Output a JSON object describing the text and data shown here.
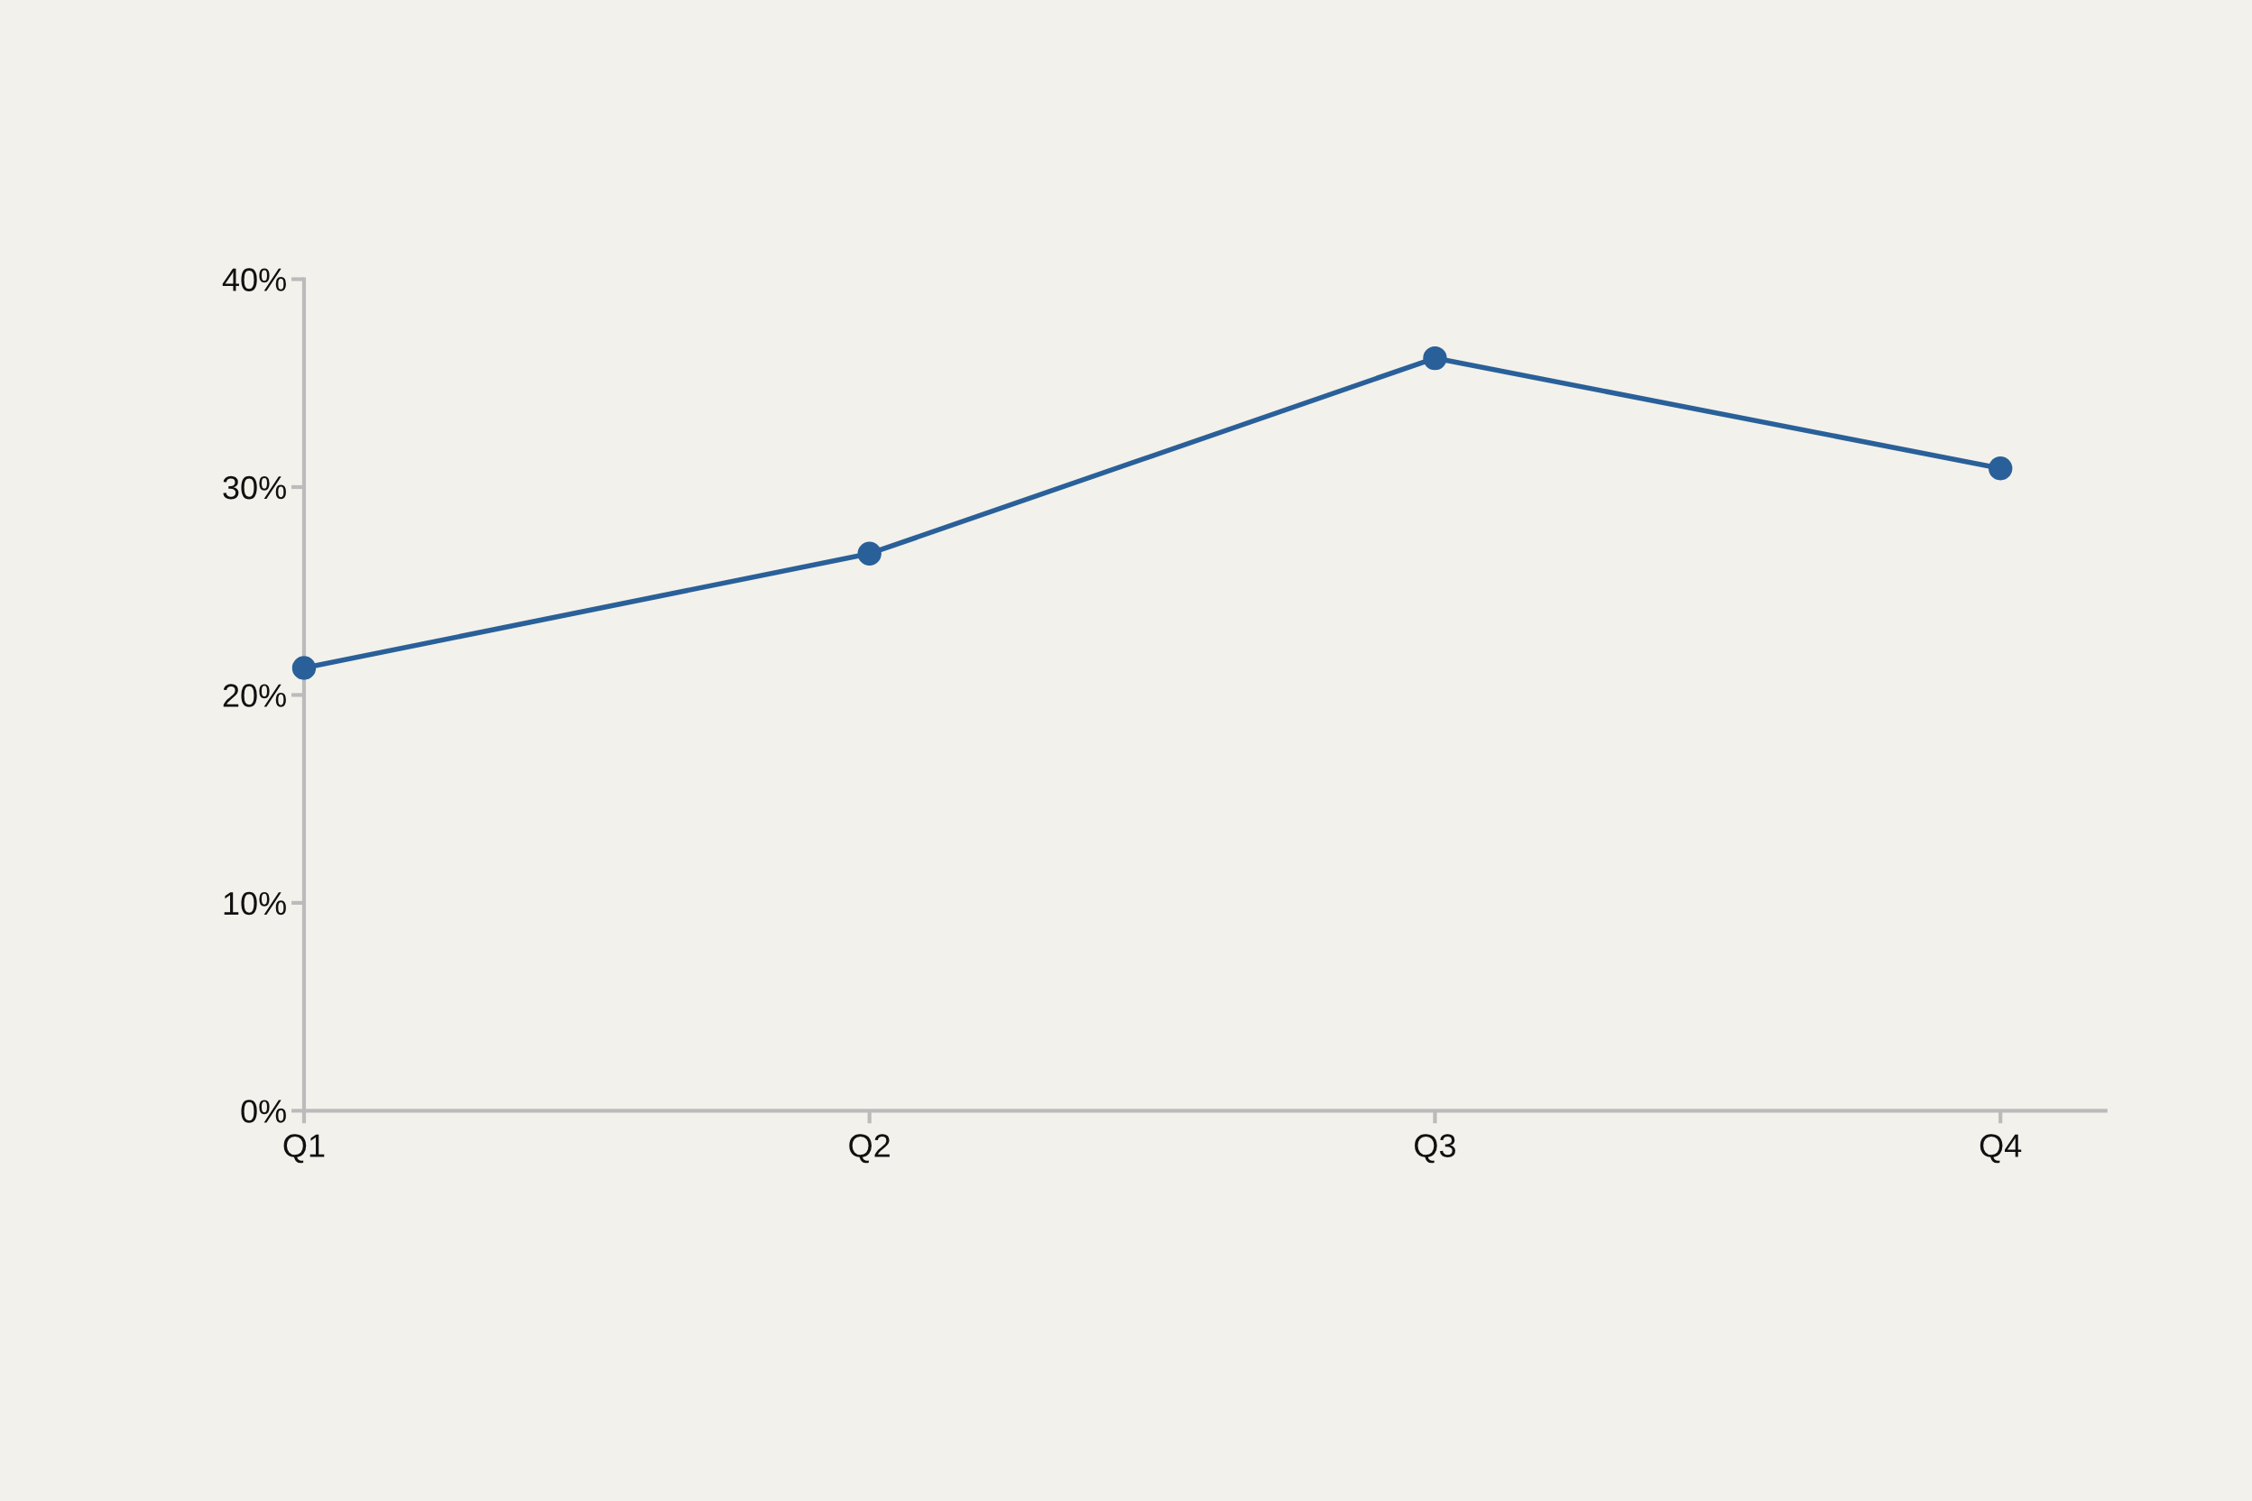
{
  "chart_data": {
    "type": "line",
    "categories": [
      "Q1",
      "Q2",
      "Q3",
      "Q4"
    ],
    "series": [
      {
        "color": "#2a6099",
        "values": [
          21.3,
          26.8,
          36.2,
          30.9
        ]
      }
    ],
    "ylim": [
      0,
      40
    ],
    "yticks": [
      {
        "value": 0,
        "label": "0%"
      },
      {
        "value": 10,
        "label": "10%"
      },
      {
        "value": 20,
        "label": "20%"
      },
      {
        "value": 30,
        "label": "30%"
      },
      {
        "value": 40,
        "label": "40%"
      }
    ],
    "grid": false,
    "legend": false,
    "marker": "circle",
    "line_style": "solid"
  }
}
